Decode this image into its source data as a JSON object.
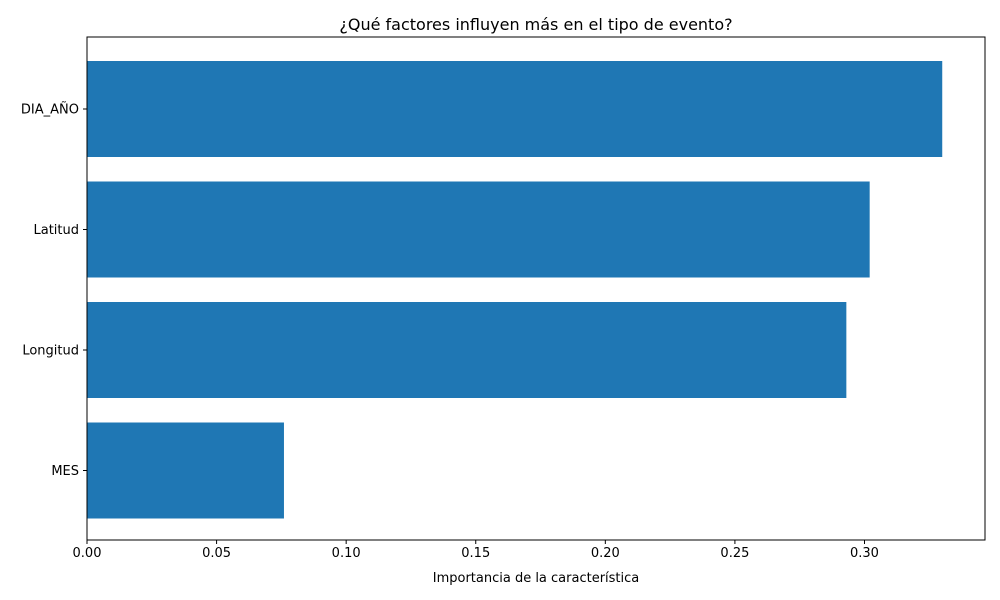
{
  "chart_data": {
    "type": "bar",
    "orientation": "horizontal",
    "title": "¿Qué factores influyen más en el tipo de evento?",
    "xlabel": "Importancia de la característica",
    "ylabel": "",
    "categories": [
      "DIA_AÑO",
      "Latitud",
      "Longitud",
      "MES"
    ],
    "values": [
      0.33,
      0.302,
      0.293,
      0.076
    ],
    "xlim": [
      0,
      0.3465
    ],
    "xticks": [
      0.0,
      0.05,
      0.1,
      0.15,
      0.2,
      0.25,
      0.3
    ],
    "xtick_labels": [
      "0.00",
      "0.05",
      "0.10",
      "0.15",
      "0.20",
      "0.25",
      "0.30"
    ],
    "bar_color": "#1f77b4",
    "grid": false,
    "legend": "none"
  }
}
